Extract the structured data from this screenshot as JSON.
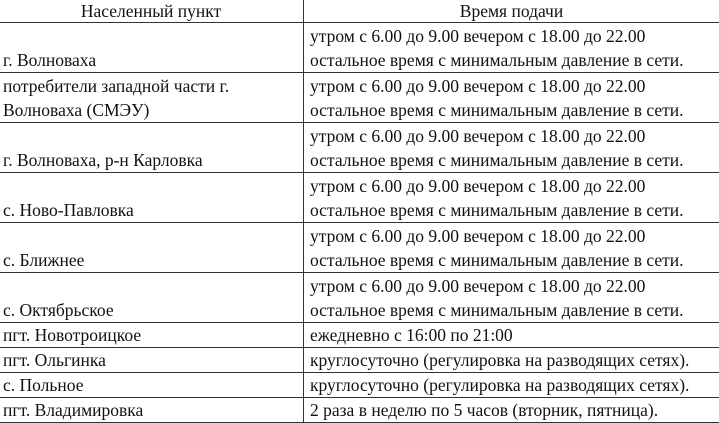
{
  "table": {
    "headers": [
      "Населенный пункт",
      "Время подачи"
    ],
    "rows": [
      {
        "place": "г. Волноваха",
        "time": "утром с 6.00 до 9.00 вечером с 18.00 до 22.00",
        "time2": "остальное время с минимальным давление в сети."
      },
      {
        "place": "потребители западной части г.",
        "place2": "Волноваха (СМЭУ)",
        "time": "утром с 6.00 до 9.00 вечером с 18.00 до 22.00",
        "time2": "остальное время с минимальным давление в сети."
      },
      {
        "place": "г. Волноваха, р-н Карловка",
        "time": "утром с 6.00 до 9.00 вечером с 18.00 до 22.00",
        "time2": "остальное время с минимальным давление в сети."
      },
      {
        "place": "с. Ново-Павловка",
        "time": "утром с 6.00 до 9.00 вечером с 18.00 до 22.00",
        "time2": "остальное время с минимальным давление в сети."
      },
      {
        "place": "с. Ближнее",
        "time": "утром с 6.00 до 9.00 вечером с 18.00 до 22.00",
        "time2": "остальное время с минимальным давление в сети."
      },
      {
        "place": "с. Октябрьское",
        "time": "утром с 6.00 до 9.00 вечером с 18.00 до 22.00",
        "time2": "остальное время с минимальным давление в сети."
      },
      {
        "place": "пгт. Новотроицкое",
        "time": "ежедневно с 16:00 по 21:00"
      },
      {
        "place": "пгт. Ольгинка",
        "time": "круглосуточно (регулировка на разводящих сетях)."
      },
      {
        "place": "с. Польное",
        "time": "круглосуточно (регулировка на разводящих сетях)."
      },
      {
        "place": "пгт. Владимировка",
        "time": "2 раза в неделю по 5 часов (вторник, пятница)."
      }
    ]
  }
}
